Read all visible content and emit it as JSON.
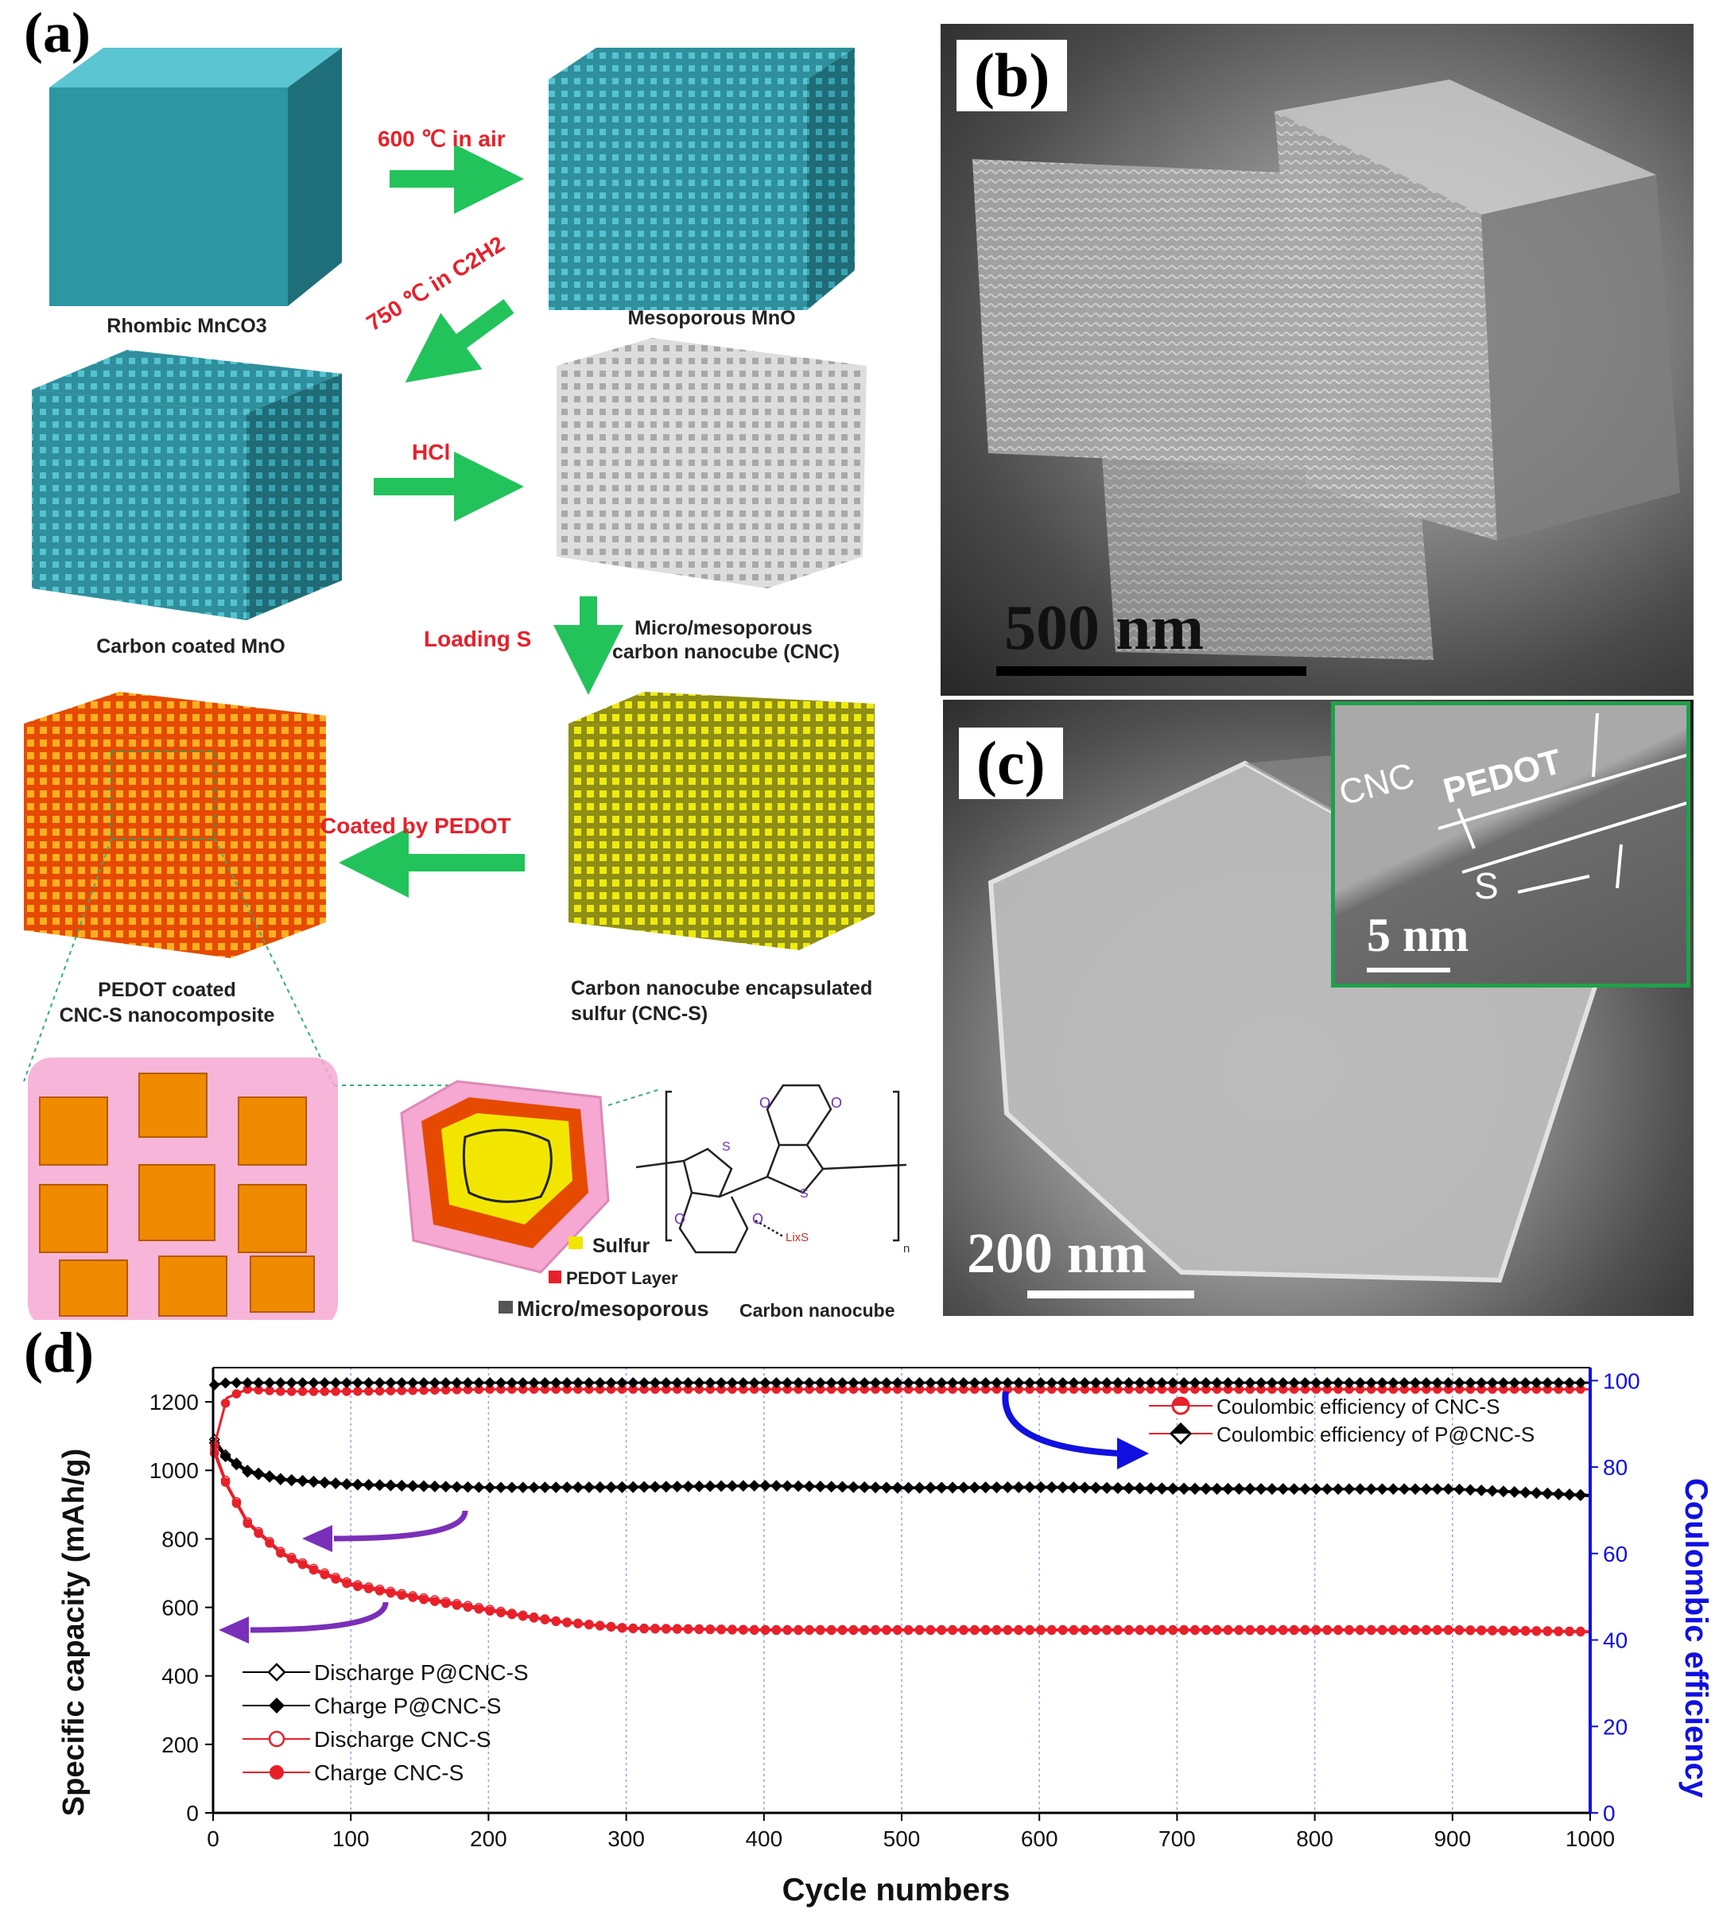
{
  "panel_a": {
    "letter": "(a)",
    "steps": {
      "step1": "600 ℃ in air",
      "step2": "750 ℃ in C2H2",
      "step3": "HCl",
      "step4": "Loading S",
      "step5": "Coated by PEDOT"
    },
    "labels": {
      "mnco3": "Rhombic MnCO3",
      "mno": "Mesoporous MnO",
      "carbon_mno": "Carbon coated MnO",
      "cnc_l1": "Micro/mesoporous",
      "cnc_l2": "carbon nanocube (CNC)",
      "pedot_l1": "PEDOT coated",
      "pedot_l2": "CNC-S nanocomposite",
      "cncs_l1": "Carbon nanocube encapsulated",
      "cncs_l2": "sulfur (CNC-S)"
    },
    "legend": {
      "sulfur": "Sulfur",
      "pedot": "PEDOT Layer",
      "carbon_a": "Micro/mesoporous",
      "carbon_b": "Carbon nanocube"
    },
    "structure": {
      "s1": "S",
      "s2": "S",
      "o1": "O",
      "o2": "O",
      "o3": "O",
      "o4": "O",
      "lix": "LixS",
      "n": "n"
    }
  },
  "panel_b": {
    "letter": "(b)",
    "scale": "500 nm"
  },
  "panel_c": {
    "letter": "(c)",
    "scale": "200 nm",
    "inset": {
      "cnc": "CNC",
      "pedot": "PEDOT",
      "s": "S",
      "scale": "5 nm"
    }
  },
  "panel_d": {
    "letter": "(d)",
    "legend_ce": [
      "Coulombic efficiency of CNC-S",
      "Coulombic efficiency of P@CNC-S"
    ],
    "legend_cap": [
      "Discharge P@CNC-S",
      "Charge P@CNC-S",
      "Discharge CNC-S",
      "Charge CNC-S"
    ]
  },
  "colors": {
    "teal": "#2a8f9a",
    "arrow_green": "#22c35a",
    "red": "#e8202a",
    "blue_axis": "#1010e0",
    "purple_arrow": "#7a2fb8",
    "sulfur_yellow": "#f2e600",
    "pedot_orange": "#f07d00"
  },
  "chart_data": {
    "type": "line",
    "xlabel": "Cycle numbers",
    "ylabel": "Specific capacity (mAh/g)",
    "y2label": "Coulombic efficiency",
    "xlim": [
      0,
      1000
    ],
    "ylim": [
      0,
      1300
    ],
    "y2lim": [
      0,
      103
    ],
    "xticks": [
      "0",
      "100",
      "200",
      "300",
      "400",
      "500",
      "600",
      "700",
      "800",
      "900",
      "1000"
    ],
    "yticks": [
      "0",
      "200",
      "400",
      "600",
      "800",
      "1000",
      "1200"
    ],
    "y2ticks": [
      "0",
      "20",
      "40",
      "60",
      "80",
      "100"
    ],
    "grid": "vertical dotted",
    "series": [
      {
        "name": "Discharge P@CNC-S",
        "axis": "left",
        "color": "#000000",
        "marker": "open-diamond",
        "x": [
          1,
          10,
          25,
          50,
          100,
          150,
          200,
          300,
          400,
          500,
          600,
          700,
          800,
          900,
          1000
        ],
        "values": [
          1090,
          1040,
          1000,
          975,
          960,
          955,
          950,
          950,
          955,
          948,
          950,
          945,
          945,
          945,
          925
        ]
      },
      {
        "name": "Charge P@CNC-S",
        "axis": "left",
        "color": "#000000",
        "marker": "filled-diamond",
        "x": [
          1,
          10,
          25,
          50,
          100,
          150,
          200,
          300,
          400,
          500,
          600,
          700,
          800,
          900,
          1000
        ],
        "values": [
          1080,
          1035,
          995,
          972,
          958,
          953,
          950,
          952,
          956,
          950,
          952,
          948,
          946,
          946,
          928
        ]
      },
      {
        "name": "Discharge CNC-S",
        "axis": "left",
        "color": "#e8202a",
        "marker": "open-circle",
        "x": [
          1,
          10,
          25,
          50,
          75,
          100,
          150,
          200,
          250,
          300,
          400,
          500,
          600,
          700,
          800,
          900,
          1000
        ],
        "values": [
          1060,
          960,
          850,
          760,
          710,
          670,
          630,
          595,
          560,
          540,
          535,
          535,
          535,
          535,
          535,
          535,
          530
        ]
      },
      {
        "name": "Charge CNC-S",
        "axis": "left",
        "color": "#e8202a",
        "marker": "filled-circle",
        "x": [
          1,
          10,
          25,
          50,
          75,
          100,
          150,
          200,
          250,
          300,
          400,
          500,
          600,
          700,
          800,
          900,
          1000
        ],
        "values": [
          1050,
          955,
          845,
          755,
          705,
          665,
          625,
          590,
          558,
          538,
          533,
          533,
          533,
          533,
          533,
          533,
          528
        ]
      },
      {
        "name": "Coulombic efficiency of CNC-S",
        "axis": "right",
        "color": "#e8202a",
        "marker": "half-circle",
        "x": [
          1,
          10,
          25,
          50,
          100,
          200,
          300,
          400,
          500,
          600,
          700,
          800,
          900,
          1000
        ],
        "values": [
          85,
          96,
          98,
          97.5,
          97.5,
          98,
          98,
          98,
          98,
          98,
          98,
          98,
          98,
          98
        ]
      },
      {
        "name": "Coulombic efficiency of P@CNC-S",
        "axis": "right",
        "color": "#000000",
        "marker": "half-diamond",
        "x": [
          1,
          10,
          50,
          100,
          200,
          300,
          400,
          500,
          600,
          700,
          800,
          900,
          1000
        ],
        "values": [
          99,
          99.5,
          99.5,
          99.5,
          99.5,
          99.5,
          99.5,
          99.5,
          99.5,
          99.5,
          99.5,
          99.5,
          99.5
        ]
      }
    ]
  }
}
